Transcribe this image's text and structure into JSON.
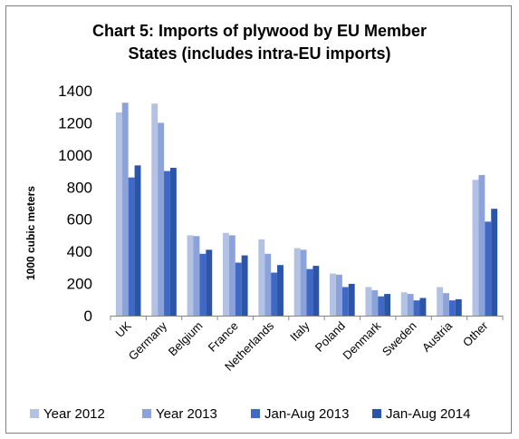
{
  "chart_data": {
    "type": "bar",
    "title_lines": [
      "Chart 5: Imports of plywood by EU Member",
      "States (includes intra-EU imports)"
    ],
    "ylabel": "1000 cubic meters",
    "ylim": [
      0,
      1400
    ],
    "yticks": [
      "0",
      "200",
      "400",
      "600",
      "800",
      "1000",
      "1200",
      "1400"
    ],
    "grid": false,
    "legend_position": "bottom",
    "categories": [
      "UK",
      "Germany",
      "Belgium",
      "France",
      "Netherlands",
      "Italy",
      "Poland",
      "Denmark",
      "Sweden",
      "Austria",
      "Other"
    ],
    "series": [
      {
        "name": "Year 2012",
        "color": "#b3c1e3",
        "values": [
          1265,
          1320,
          500,
          515,
          475,
          420,
          262,
          178,
          145,
          178,
          845
        ]
      },
      {
        "name": "Year 2013",
        "color": "#8ba2da",
        "values": [
          1325,
          1200,
          495,
          500,
          385,
          410,
          255,
          158,
          135,
          140,
          875
        ]
      },
      {
        "name": "Jan-Aug 2013",
        "color": "#3f69c4",
        "values": [
          860,
          900,
          385,
          330,
          268,
          290,
          178,
          120,
          95,
          95,
          585
        ]
      },
      {
        "name": "Jan-Aug 2014",
        "color": "#2b55a8",
        "values": [
          935,
          920,
          410,
          375,
          315,
          310,
          198,
          135,
          110,
          102,
          665
        ]
      }
    ]
  }
}
